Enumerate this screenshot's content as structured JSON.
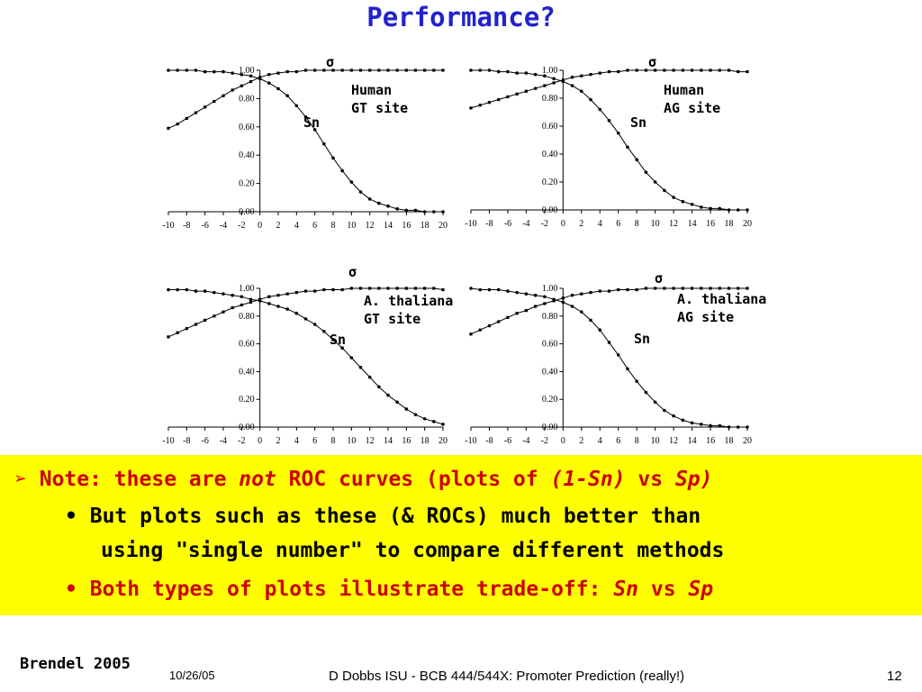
{
  "slide": {
    "title": "Performance?",
    "note": {
      "arrow": "➢",
      "line1_a": "Note: these are ",
      "line1_b": "not",
      "line1_c": " ROC curves (plots of ",
      "line1_d": "(1-Sn)",
      "line1_e": " vs ",
      "line1_f": "Sp)",
      "bullet": "•",
      "line2": "But plots such as these (& ROCs) much better than",
      "line3": "using \"single number\" to compare different methods",
      "line4_a": "Both types of plots illustrate trade-off: ",
      "line4_b": "Sn",
      "line4_c": " vs ",
      "line4_d": "Sp"
    },
    "footer": {
      "author": "Brendel 2005",
      "date": "10/26/05",
      "center": "D Dobbs ISU - BCB 444/544X: Promoter Prediction (really!)",
      "page": "12"
    }
  },
  "chart_data": [
    {
      "type": "line",
      "annotation": [
        "Human",
        "GT site"
      ],
      "sigma_label": "σ",
      "sn_label": "Sn",
      "x": [
        -10,
        -9,
        -8,
        -7,
        -6,
        -5,
        -4,
        -3,
        -2,
        -1,
        0,
        1,
        2,
        3,
        4,
        5,
        6,
        7,
        8,
        9,
        10,
        11,
        12,
        13,
        14,
        15,
        16,
        17,
        18,
        19,
        20
      ],
      "xticks": [
        -10,
        -8,
        -6,
        -4,
        -2,
        0,
        2,
        4,
        6,
        8,
        10,
        12,
        14,
        16,
        18,
        20
      ],
      "yticks": [
        "0.00",
        "0.20",
        "0.40",
        "0.60",
        "0.80",
        "1.00"
      ],
      "xlim": [
        -10,
        20
      ],
      "ylim": [
        0,
        1
      ],
      "series": [
        {
          "values": [
            0.59,
            0.62,
            0.66,
            0.7,
            0.74,
            0.78,
            0.82,
            0.86,
            0.89,
            0.92,
            0.95,
            0.97,
            0.98,
            0.99,
            0.99,
            1.0,
            1.0,
            1.0,
            1.0,
            1.0,
            1.0,
            1.0,
            1.0,
            1.0,
            1.0,
            1.0,
            1.0,
            1.0,
            1.0,
            1.0,
            1.0
          ]
        },
        {
          "values": [
            1.0,
            1.0,
            1.0,
            1.0,
            0.99,
            0.99,
            0.99,
            0.98,
            0.97,
            0.96,
            0.94,
            0.91,
            0.87,
            0.82,
            0.75,
            0.67,
            0.58,
            0.48,
            0.38,
            0.29,
            0.21,
            0.14,
            0.09,
            0.06,
            0.04,
            0.02,
            0.01,
            0.01,
            0.0,
            0.0,
            0.0
          ]
        }
      ]
    },
    {
      "type": "line",
      "annotation": [
        "Human",
        "AG site"
      ],
      "sigma_label": "σ",
      "sn_label": "Sn",
      "x": [
        -10,
        -9,
        -8,
        -7,
        -6,
        -5,
        -4,
        -3,
        -2,
        -1,
        0,
        1,
        2,
        3,
        4,
        5,
        6,
        7,
        8,
        9,
        10,
        11,
        12,
        13,
        14,
        15,
        16,
        17,
        18,
        19,
        20
      ],
      "xticks": [
        -10,
        -8,
        -6,
        -4,
        -2,
        0,
        2,
        4,
        6,
        8,
        10,
        12,
        14,
        16,
        18,
        20
      ],
      "yticks": [
        "0.00",
        "0.20",
        "0.40",
        "0.60",
        "0.80",
        "1.00"
      ],
      "xlim": [
        -10,
        20
      ],
      "ylim": [
        0,
        1
      ],
      "series": [
        {
          "values": [
            0.73,
            0.75,
            0.77,
            0.79,
            0.81,
            0.83,
            0.85,
            0.87,
            0.89,
            0.91,
            0.93,
            0.95,
            0.96,
            0.97,
            0.98,
            0.99,
            0.99,
            1.0,
            1.0,
            1.0,
            1.0,
            1.0,
            1.0,
            1.0,
            1.0,
            1.0,
            1.0,
            1.0,
            1.0,
            0.99,
            0.99
          ]
        },
        {
          "values": [
            1.0,
            1.0,
            1.0,
            0.99,
            0.99,
            0.98,
            0.98,
            0.97,
            0.96,
            0.94,
            0.92,
            0.89,
            0.85,
            0.79,
            0.72,
            0.64,
            0.55,
            0.45,
            0.36,
            0.27,
            0.2,
            0.14,
            0.09,
            0.06,
            0.04,
            0.02,
            0.01,
            0.01,
            0.0,
            0.0,
            0.0
          ]
        }
      ]
    },
    {
      "type": "line",
      "annotation": [
        "A. thaliana",
        "GT site"
      ],
      "sigma_label": "σ",
      "sn_label": "Sn",
      "x": [
        -10,
        -9,
        -8,
        -7,
        -6,
        -5,
        -4,
        -3,
        -2,
        -1,
        0,
        1,
        2,
        3,
        4,
        5,
        6,
        7,
        8,
        9,
        10,
        11,
        12,
        13,
        14,
        15,
        16,
        17,
        18,
        19,
        20
      ],
      "xticks": [
        -10,
        -8,
        -6,
        -4,
        -2,
        0,
        2,
        4,
        6,
        8,
        10,
        12,
        14,
        16,
        18,
        20
      ],
      "yticks": [
        "0.00",
        "0.20",
        "0.40",
        "0.60",
        "0.80",
        "1.00"
      ],
      "xlim": [
        -10,
        20
      ],
      "ylim": [
        0,
        1
      ],
      "series": [
        {
          "values": [
            0.65,
            0.68,
            0.71,
            0.74,
            0.77,
            0.8,
            0.83,
            0.86,
            0.88,
            0.9,
            0.92,
            0.94,
            0.95,
            0.96,
            0.97,
            0.98,
            0.98,
            0.99,
            0.99,
            0.99,
            1.0,
            1.0,
            1.0,
            1.0,
            1.0,
            1.0,
            1.0,
            1.0,
            1.0,
            1.0,
            0.99
          ]
        },
        {
          "values": [
            0.99,
            0.99,
            0.99,
            0.98,
            0.98,
            0.97,
            0.96,
            0.95,
            0.94,
            0.92,
            0.91,
            0.89,
            0.87,
            0.85,
            0.82,
            0.78,
            0.74,
            0.69,
            0.63,
            0.57,
            0.5,
            0.43,
            0.36,
            0.29,
            0.23,
            0.18,
            0.13,
            0.09,
            0.06,
            0.04,
            0.02
          ]
        }
      ]
    },
    {
      "type": "line",
      "annotation": [
        "A. thaliana",
        "AG site"
      ],
      "sigma_label": "σ",
      "sn_label": "Sn",
      "x": [
        -10,
        -9,
        -8,
        -7,
        -6,
        -5,
        -4,
        -3,
        -2,
        -1,
        0,
        1,
        2,
        3,
        4,
        5,
        6,
        7,
        8,
        9,
        10,
        11,
        12,
        13,
        14,
        15,
        16,
        17,
        18,
        19,
        20
      ],
      "xticks": [
        -10,
        -8,
        -6,
        -4,
        -2,
        0,
        2,
        4,
        6,
        8,
        10,
        12,
        14,
        16,
        18,
        20
      ],
      "yticks": [
        "0.00",
        "0.20",
        "0.40",
        "0.60",
        "0.80",
        "1.00"
      ],
      "xlim": [
        -10,
        20
      ],
      "ylim": [
        0,
        1
      ],
      "series": [
        {
          "values": [
            0.67,
            0.7,
            0.73,
            0.76,
            0.79,
            0.82,
            0.84,
            0.87,
            0.89,
            0.91,
            0.93,
            0.95,
            0.96,
            0.97,
            0.98,
            0.98,
            0.99,
            0.99,
            0.99,
            1.0,
            1.0,
            1.0,
            1.0,
            1.0,
            1.0,
            1.0,
            1.0,
            1.0,
            1.0,
            1.0,
            1.0
          ]
        },
        {
          "values": [
            1.0,
            0.99,
            0.99,
            0.99,
            0.98,
            0.97,
            0.96,
            0.95,
            0.94,
            0.92,
            0.9,
            0.87,
            0.83,
            0.77,
            0.7,
            0.61,
            0.52,
            0.42,
            0.33,
            0.25,
            0.18,
            0.12,
            0.08,
            0.05,
            0.03,
            0.02,
            0.01,
            0.01,
            0.0,
            0.0,
            0.0
          ]
        }
      ]
    }
  ]
}
